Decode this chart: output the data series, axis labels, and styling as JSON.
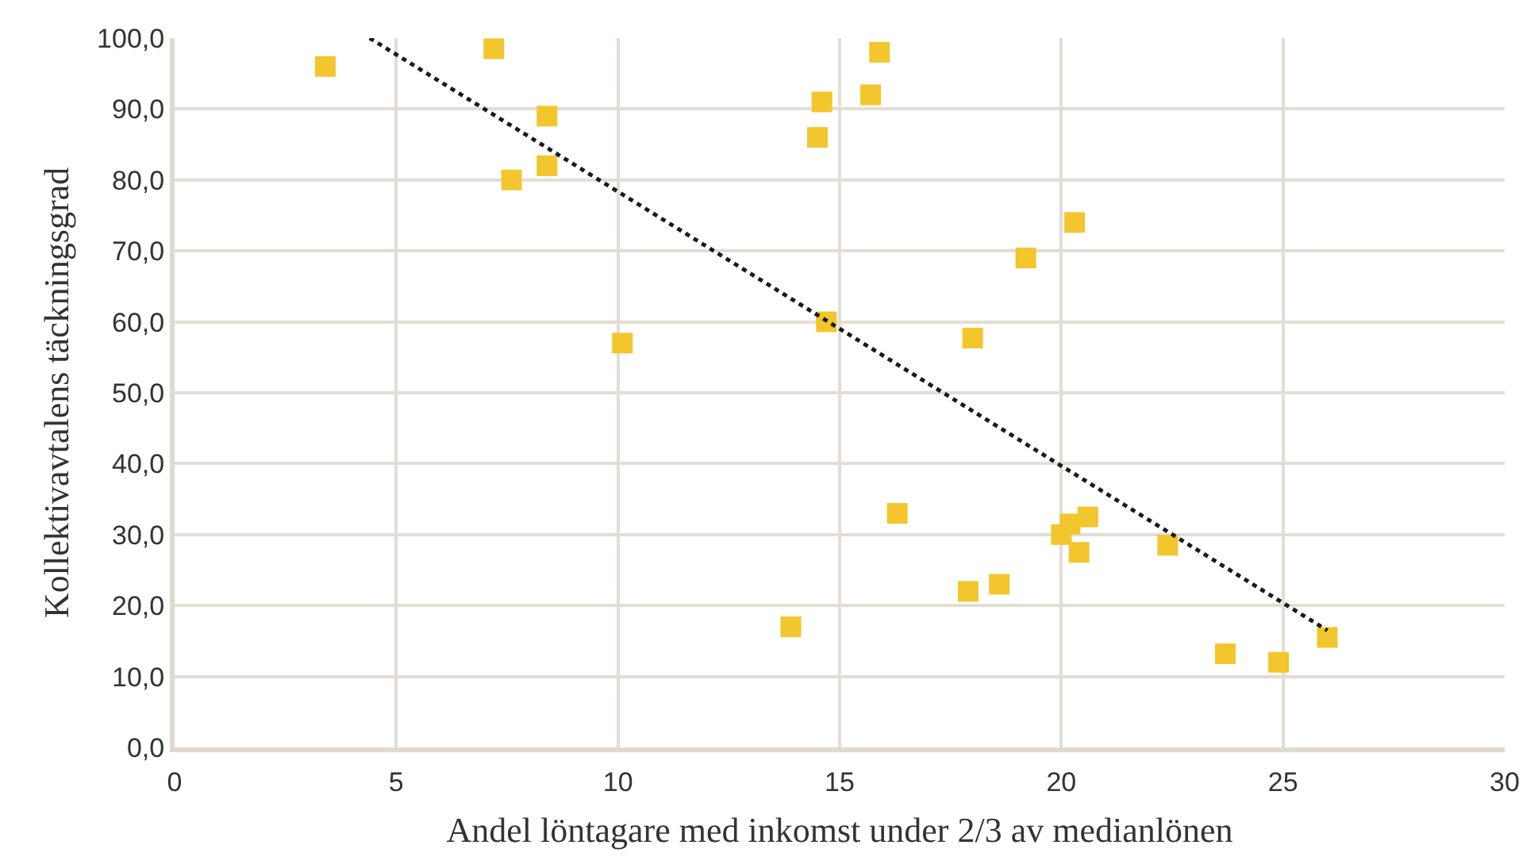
{
  "chart_data": {
    "type": "scatter",
    "xlabel": "Andel löntagare med inkomst under 2/3 av medianlönen",
    "ylabel": "Kollektivavtalens täckningsgrad",
    "series": [
      {
        "color": "#f2c62c",
        "marker": "square",
        "x": [
          3.4,
          7.2,
          7.6,
          8.4,
          8.4,
          10.1,
          13.9,
          14.5,
          14.6,
          14.7,
          15.7,
          15.9,
          16.3,
          17.9,
          18.0,
          18.6,
          19.2,
          20.0,
          20.2,
          20.4,
          20.3,
          20.6,
          22.4,
          23.7,
          24.9,
          26.0
        ],
        "values": [
          96,
          98.5,
          80,
          89,
          82,
          57,
          17,
          86,
          91,
          60,
          92,
          98,
          33,
          22,
          57.7,
          23,
          69,
          30,
          31.5,
          27.5,
          74,
          32.5,
          28.5,
          13.2,
          12,
          15.5
        ]
      },
      {
        "type": "line",
        "color": "#1a1a1a",
        "marker": "none",
        "line_style": "dotted",
        "x": [
          4.4,
          26.0
        ],
        "values": [
          100,
          16.5
        ]
      }
    ],
    "xlim": [
      0,
      30
    ],
    "xticks": [
      0,
      5,
      10,
      15,
      20,
      25,
      30
    ],
    "ylim": [
      0,
      100
    ],
    "yticks": [
      {
        "value": 0,
        "label": "0,0"
      },
      {
        "value": 10,
        "label": "10,0"
      },
      {
        "value": 20,
        "label": "20,0"
      },
      {
        "value": 30,
        "label": "30,0"
      },
      {
        "value": 40,
        "label": "40,0"
      },
      {
        "value": 50,
        "label": "50,0"
      },
      {
        "value": 60,
        "label": "60,0"
      },
      {
        "value": 70,
        "label": "70,0"
      },
      {
        "value": 80,
        "label": "80,0"
      },
      {
        "value": 90,
        "label": "90,0"
      },
      {
        "value": 100,
        "label": "100,0"
      }
    ],
    "grid": true
  }
}
